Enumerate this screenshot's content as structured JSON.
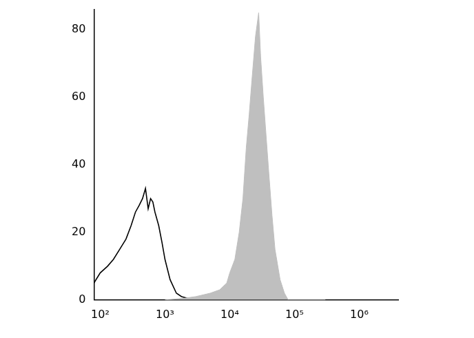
{
  "chart_data": {
    "type": "line",
    "log": "x",
    "grid": false,
    "xlim": [
      80,
      4000000
    ],
    "xticks": [
      {
        "value": 100,
        "label": "10²"
      },
      {
        "value": 1000,
        "label": "10³"
      },
      {
        "value": 10000,
        "label": "10⁴"
      },
      {
        "value": 100000,
        "label": "10⁵"
      },
      {
        "value": 1000000,
        "label": "10⁶"
      }
    ],
    "ylim": [
      0,
      86
    ],
    "yticks": [
      0,
      20,
      40,
      60,
      80
    ],
    "series": [
      {
        "type": "area",
        "color": "#bfbfbf",
        "x": [
          1000,
          2000,
          3000,
          5000,
          7000,
          9000,
          10000,
          12000,
          14000,
          16000,
          18000,
          20000,
          22000,
          25000,
          28000,
          30000,
          33000,
          36000,
          40000,
          45000,
          50000,
          60000,
          70000,
          80000,
          300000
        ],
        "values": [
          0,
          0.5,
          1,
          2,
          3,
          5,
          8,
          12,
          20,
          30,
          45,
          55,
          65,
          78,
          85,
          72,
          60,
          50,
          38,
          25,
          15,
          6,
          2,
          0,
          0
        ]
      },
      {
        "type": "line",
        "color": "#000000",
        "x": [
          80,
          100,
          130,
          160,
          200,
          250,
          300,
          350,
          400,
          450,
          500,
          550,
          600,
          650,
          700,
          800,
          900,
          1000,
          1200,
          1500,
          1800,
          2200,
          2800,
          4000
        ],
        "values": [
          5,
          8,
          10,
          12,
          15,
          18,
          22,
          26,
          28,
          30,
          33,
          27,
          30,
          29,
          26,
          22,
          17,
          12,
          6,
          2,
          1,
          0.5,
          0,
          0
        ]
      }
    ]
  }
}
